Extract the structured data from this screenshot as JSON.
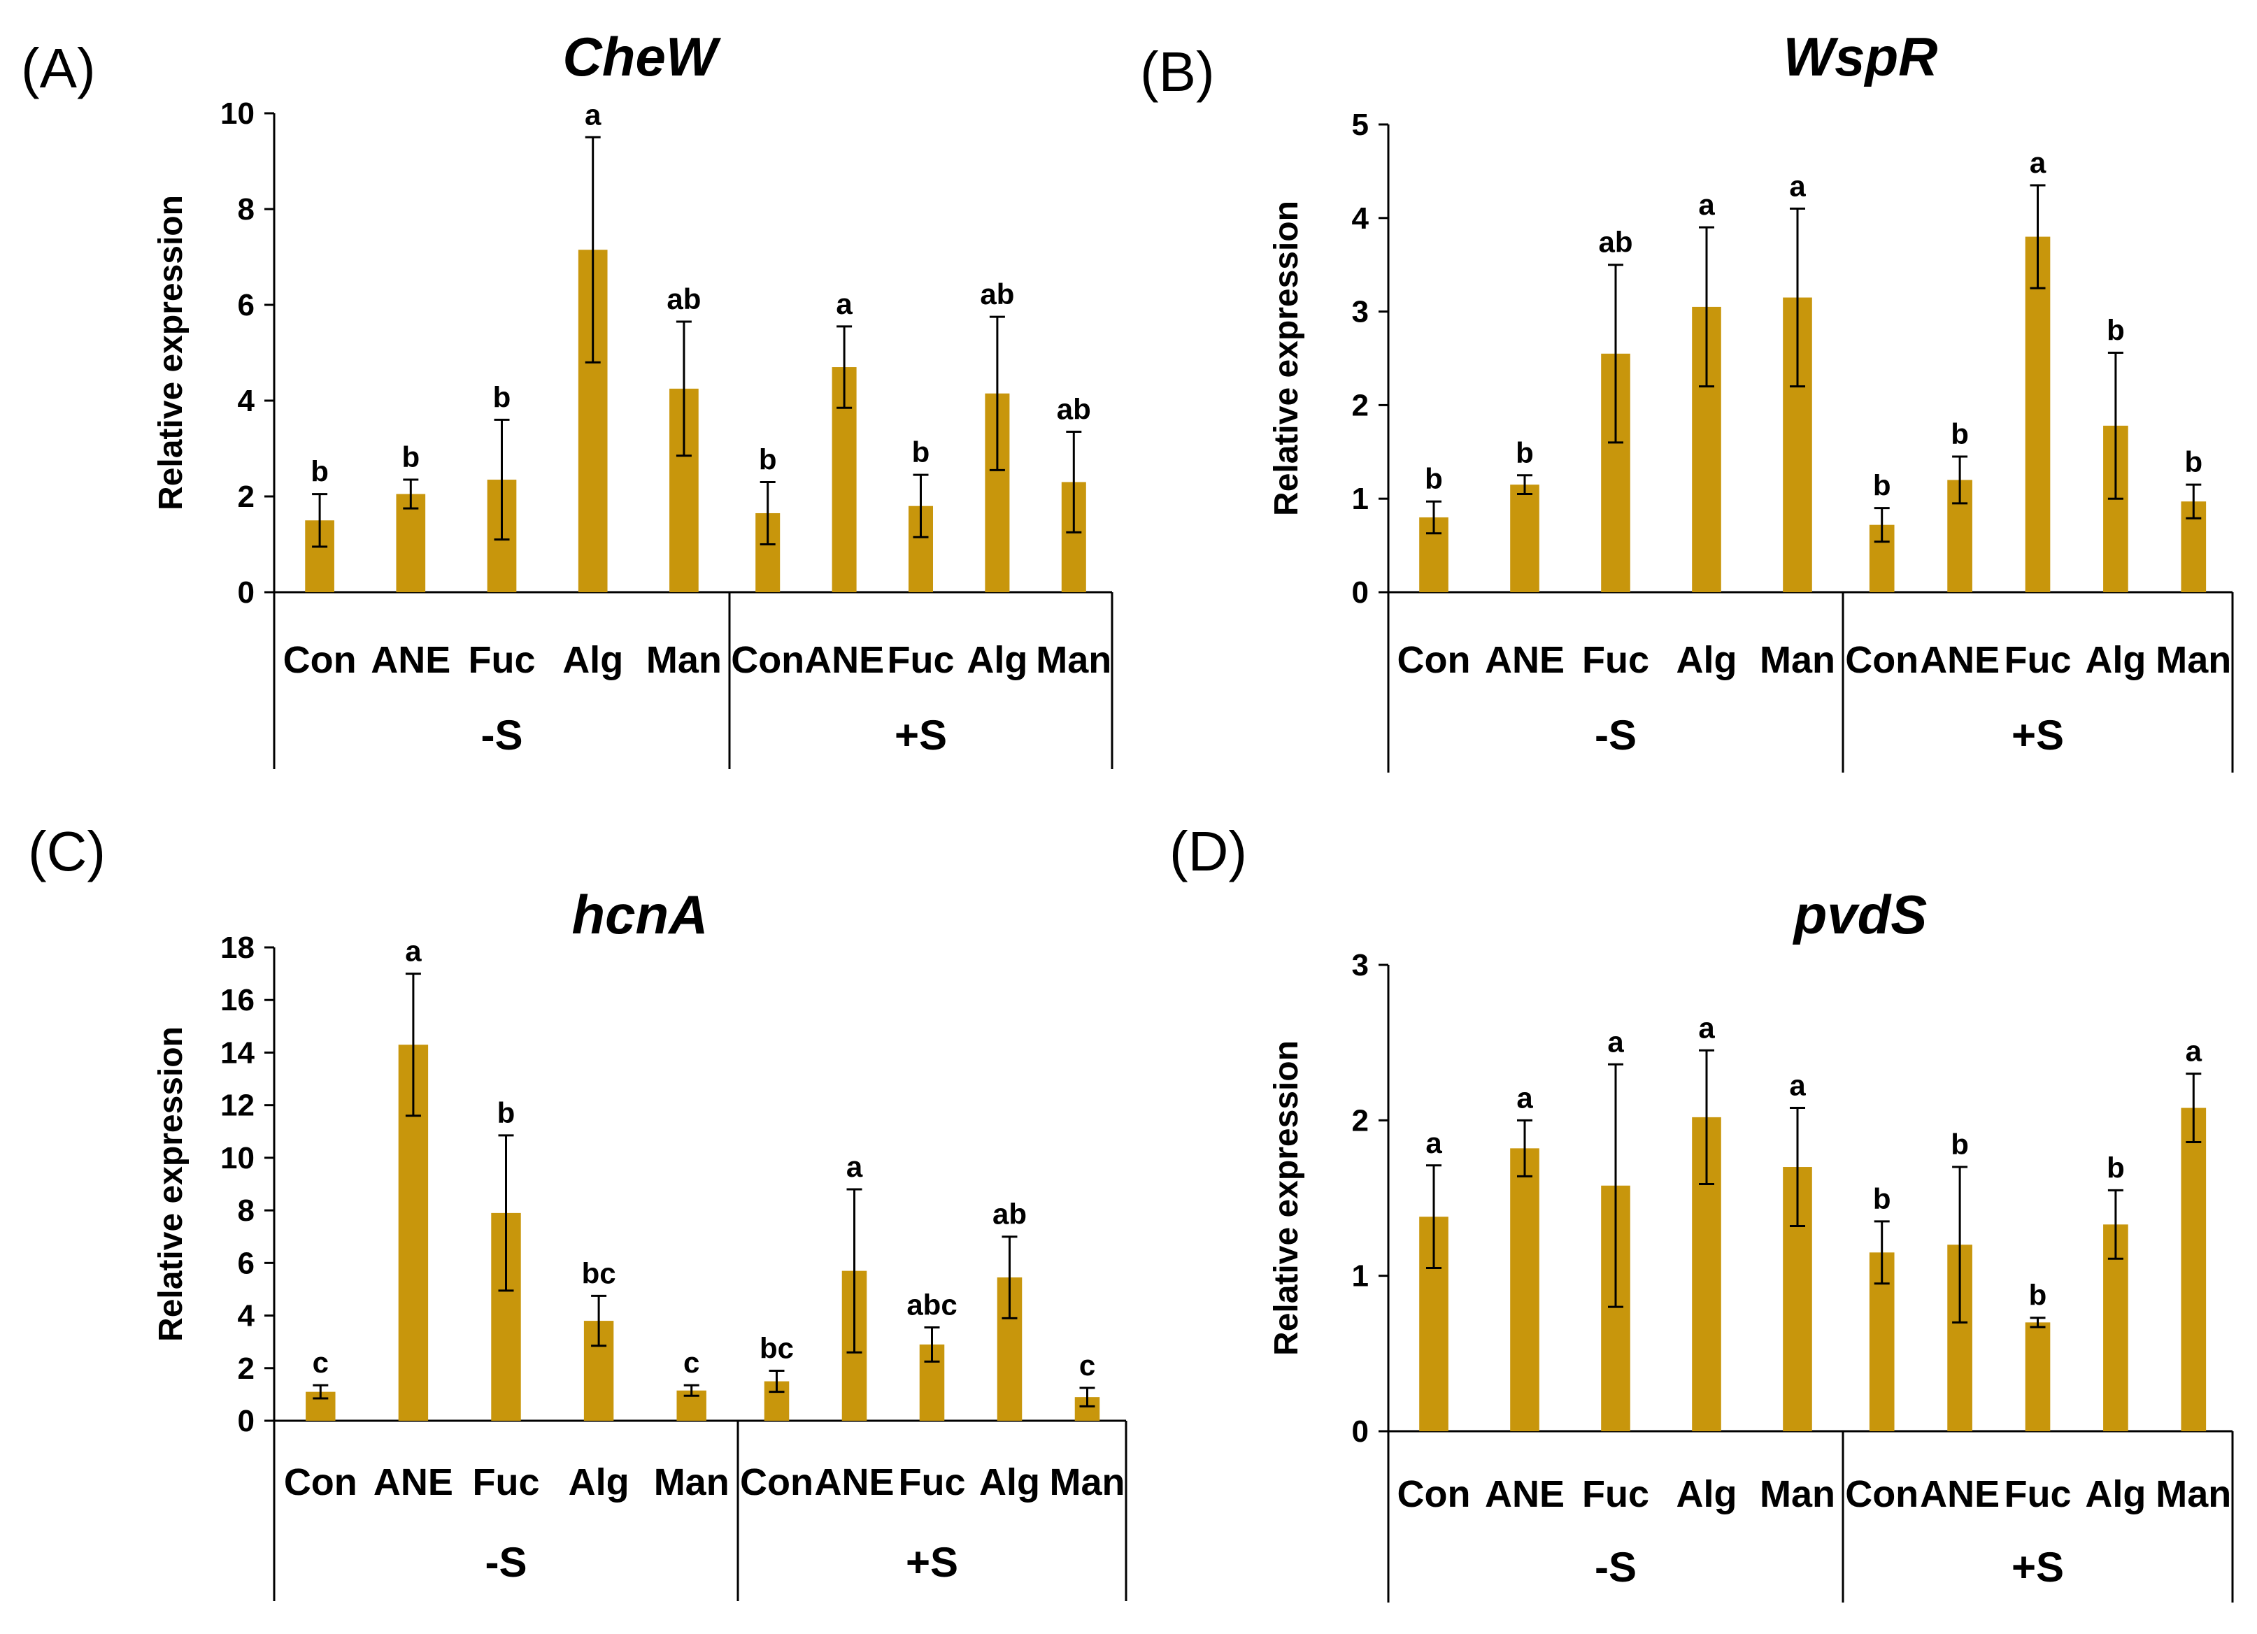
{
  "colors": {
    "bar": "#C8960C",
    "axis": "#000000"
  },
  "chart_data": [
    {
      "panel": "(A)",
      "title": "CheW",
      "type": "bar",
      "ylabel": "Relative expression",
      "ylim": [
        0,
        10
      ],
      "yticks": [
        "0",
        "2",
        "4",
        "6",
        "8",
        "10"
      ],
      "groups": [
        "-S",
        "+S"
      ],
      "categories": [
        "Con",
        "ANE",
        "Fuc",
        "Alg",
        "Man"
      ],
      "series": [
        {
          "group": "-S",
          "values": [
            1.5,
            2.05,
            2.35,
            7.15,
            4.25
          ],
          "errors": [
            0.55,
            0.3,
            1.25,
            2.35,
            1.4
          ],
          "labels": [
            "b",
            "b",
            "b",
            "a",
            "ab"
          ]
        },
        {
          "group": "+S",
          "values": [
            1.65,
            4.7,
            1.8,
            4.15,
            2.3
          ],
          "errors": [
            0.65,
            0.85,
            0.65,
            1.6,
            1.05
          ],
          "labels": [
            "b",
            "a",
            "b",
            "ab",
            "ab"
          ]
        }
      ]
    },
    {
      "panel": "(B)",
      "title": "WspR",
      "type": "bar",
      "ylabel": "Relative expression",
      "ylim": [
        0,
        5
      ],
      "yticks": [
        "0",
        "1",
        "2",
        "3",
        "4",
        "5"
      ],
      "groups": [
        "-S",
        "+S"
      ],
      "categories": [
        "Con",
        "ANE",
        "Fuc",
        "Alg",
        "Man"
      ],
      "series": [
        {
          "group": "-S",
          "values": [
            0.8,
            1.15,
            2.55,
            3.05,
            3.15
          ],
          "errors": [
            0.17,
            0.1,
            0.95,
            0.85,
            0.95
          ],
          "labels": [
            "b",
            "b",
            "ab",
            "a",
            "a"
          ]
        },
        {
          "group": "+S",
          "values": [
            0.72,
            1.2,
            3.8,
            1.78,
            0.97
          ],
          "errors": [
            0.18,
            0.25,
            0.55,
            0.78,
            0.18
          ],
          "labels": [
            "b",
            "b",
            "a",
            "b",
            "b"
          ]
        }
      ]
    },
    {
      "panel": "(C)",
      "title": "hcnA",
      "type": "bar",
      "ylabel": "Relative expression",
      "ylim": [
        0,
        18
      ],
      "yticks": [
        "0",
        "2",
        "4",
        "6",
        "8",
        "10",
        "12",
        "14",
        "16",
        "18"
      ],
      "groups": [
        "-S",
        "+S"
      ],
      "categories": [
        "Con",
        "ANE",
        "Fuc",
        "Alg",
        "Man"
      ],
      "series": [
        {
          "group": "-S",
          "values": [
            1.1,
            14.3,
            7.9,
            3.8,
            1.15
          ],
          "errors": [
            0.25,
            2.7,
            2.95,
            0.95,
            0.2
          ],
          "labels": [
            "c",
            "a",
            "b",
            "bc",
            "c"
          ]
        },
        {
          "group": "+S",
          "values": [
            1.5,
            5.7,
            2.9,
            5.45,
            0.9
          ],
          "errors": [
            0.4,
            3.1,
            0.65,
            1.55,
            0.35
          ],
          "labels": [
            "bc",
            "a",
            "abc",
            "ab",
            "c"
          ]
        }
      ]
    },
    {
      "panel": "(D)",
      "title": "pvdS",
      "type": "bar",
      "ylabel": "Relative expression",
      "ylim": [
        0,
        3
      ],
      "yticks": [
        "0",
        "1",
        "2",
        "3"
      ],
      "groups": [
        "-S",
        "+S"
      ],
      "categories": [
        "Con",
        "ANE",
        "Fuc",
        "Alg",
        "Man"
      ],
      "series": [
        {
          "group": "-S",
          "values": [
            1.38,
            1.82,
            1.58,
            2.02,
            1.7
          ],
          "errors": [
            0.33,
            0.18,
            0.78,
            0.43,
            0.38
          ],
          "labels": [
            "a",
            "a",
            "a",
            "a",
            "a"
          ]
        },
        {
          "group": "+S",
          "values": [
            1.15,
            1.2,
            0.7,
            1.33,
            2.08
          ],
          "errors": [
            0.2,
            0.5,
            0.03,
            0.22,
            0.22
          ],
          "labels": [
            "b",
            "b",
            "b",
            "b",
            "a"
          ]
        }
      ]
    }
  ]
}
